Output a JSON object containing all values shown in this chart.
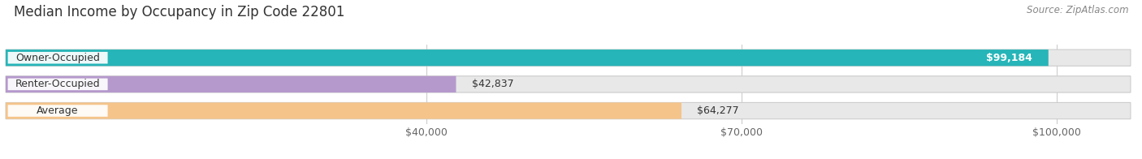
{
  "title": "Median Income by Occupancy in Zip Code 22801",
  "source": "Source: ZipAtlas.com",
  "categories": [
    "Owner-Occupied",
    "Renter-Occupied",
    "Average"
  ],
  "values": [
    99184,
    42837,
    64277
  ],
  "bar_colors": [
    "#26b5b8",
    "#b599cc",
    "#f5c48a"
  ],
  "bar_bg_color": "#e8e8e8",
  "label_values": [
    "$99,184",
    "$42,837",
    "$64,277"
  ],
  "label_inside": [
    true,
    false,
    false
  ],
  "xlim": [
    0,
    107000
  ],
  "xticks": [
    40000,
    70000,
    100000
  ],
  "xtick_labels": [
    "$40,000",
    "$70,000",
    "$100,000"
  ],
  "title_fontsize": 12,
  "source_fontsize": 8.5,
  "bar_label_fontsize": 9,
  "cat_label_fontsize": 9,
  "tick_fontsize": 9,
  "background_color": "#ffffff",
  "bar_height": 0.62,
  "bar_gap": 0.38
}
